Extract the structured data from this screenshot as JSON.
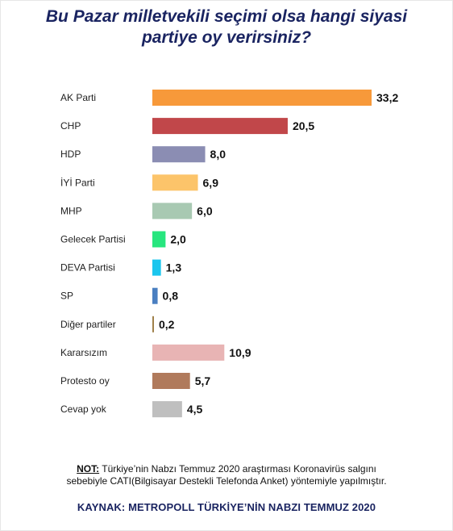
{
  "title": {
    "line1": "Bu Pazar milletvekili seçimi olsa hangi siyasi",
    "line2": "partiye oy verirsiniz?"
  },
  "chart_data": {
    "type": "bar",
    "orientation": "horizontal",
    "categories": [
      "AK Parti",
      "CHP",
      "HDP",
      "İYİ Parti",
      "MHP",
      "Gelecek Partisi",
      "DEVA Partisi",
      "SP",
      "Diğer partiler",
      "Kararsızım",
      "Protesto oy",
      "Cevap yok"
    ],
    "values": [
      33.2,
      20.5,
      8.0,
      6.9,
      6.0,
      2.0,
      1.3,
      0.8,
      0.2,
      10.9,
      5.7,
      4.5
    ],
    "value_labels": [
      "33,2",
      "20,5",
      "8,0",
      "6,9",
      "6,0",
      "2,0",
      "1,3",
      "0,8",
      "0,2",
      "10,9",
      "5,7",
      "4,5"
    ],
    "colors": [
      "#f7993a",
      "#c1474a",
      "#8b8db3",
      "#fcc46a",
      "#a8c9b2",
      "#27e67e",
      "#1bc6ee",
      "#4a7fc1",
      "#a0804a",
      "#e8b4b4",
      "#b07a5c",
      "#bfbfbf"
    ],
    "xlim": [
      0,
      33.2
    ],
    "grid": false,
    "legend": "none"
  },
  "note": {
    "key": "NOT:",
    "line1": " Türkiye’nin Nabzı Temmuz 2020 araştırması Koronavirüs salgını",
    "line2": "sebebiyle CATI(Bilgisayar Destekli Telefonda Anket) yöntemiyle yapılmıştır."
  },
  "source": "KAYNAK: METROPOLL TÜRKİYE’NİN NABZI TEMMUZ 2020"
}
